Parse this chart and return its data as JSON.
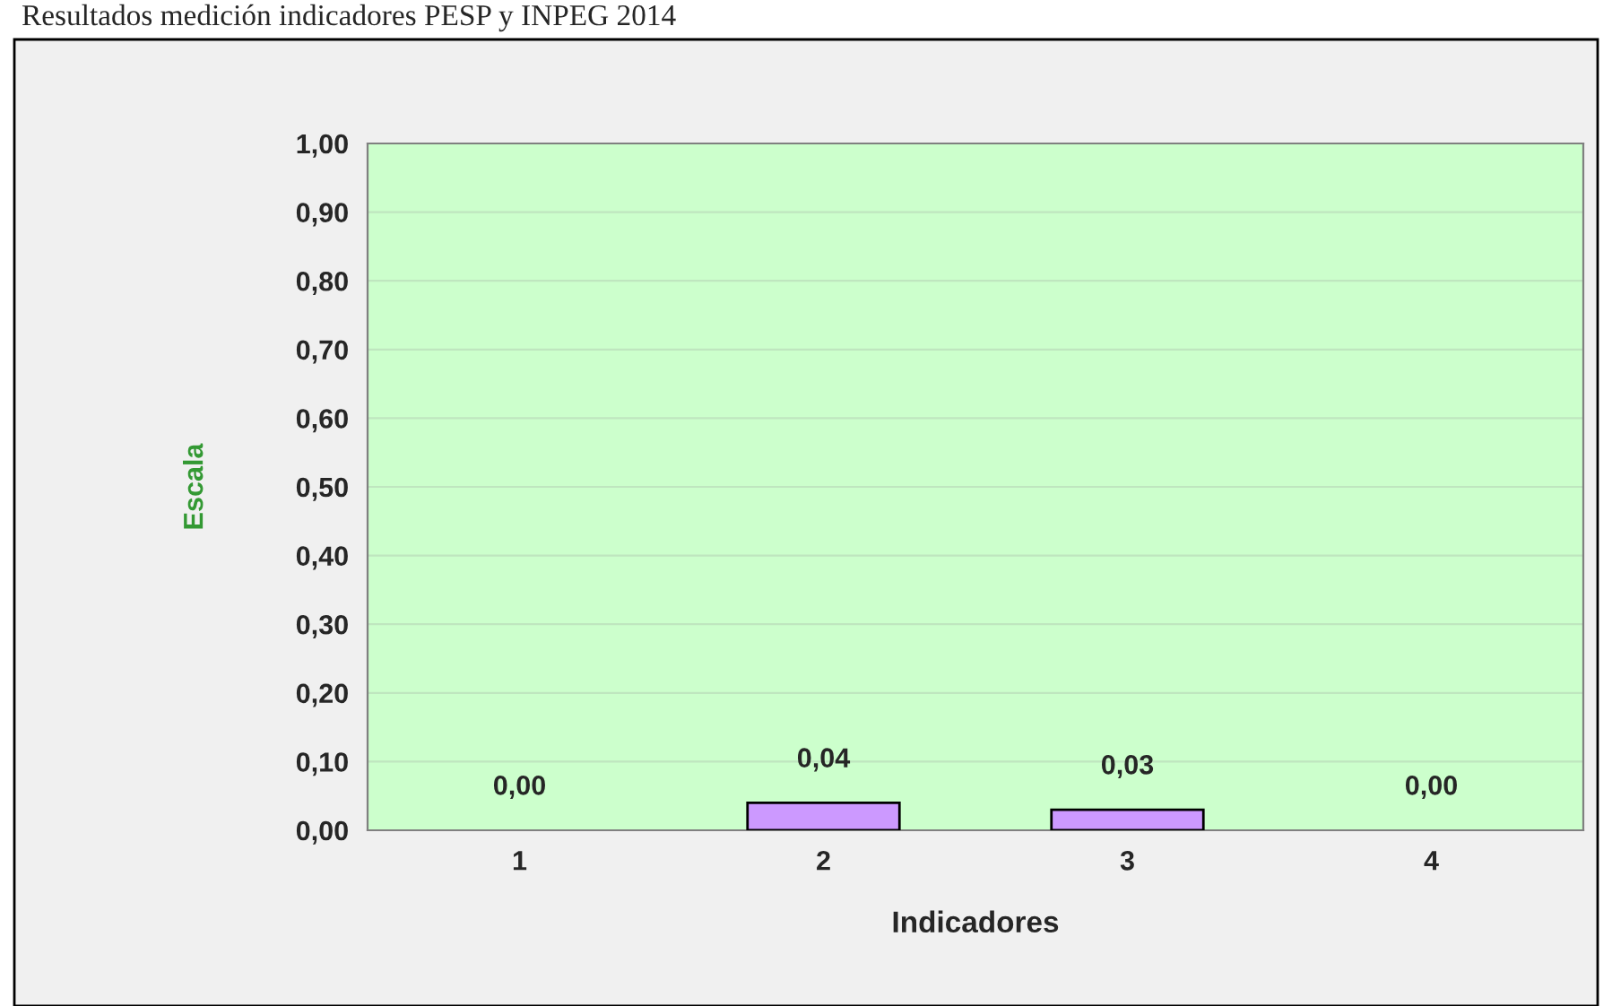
{
  "chart_data": {
    "type": "bar",
    "title": "Resultados medición indicadores PESP y INPEG 2014",
    "xlabel": "Indicadores",
    "ylabel": "Escala",
    "categories": [
      "1",
      "2",
      "3",
      "4"
    ],
    "values": [
      0,
      0.04,
      0.03,
      0
    ],
    "color": "#cc99ff",
    "value_labels": [
      "0,00",
      "0,04",
      "0,03",
      "0,00"
    ],
    "ylim": [
      0,
      1
    ],
    "yticks": [
      {
        "value": 0,
        "label": "0,00"
      },
      {
        "value": 0.1,
        "label": "0,10"
      },
      {
        "value": 0.2,
        "label": "0,20"
      },
      {
        "value": 0.3,
        "label": "0,30"
      },
      {
        "value": 0.4,
        "label": "0,40"
      },
      {
        "value": 0.5,
        "label": "0,50"
      },
      {
        "value": 0.6,
        "label": "0,60"
      },
      {
        "value": 0.7,
        "label": "0,70"
      },
      {
        "value": 0.8,
        "label": "0,80"
      },
      {
        "value": 0.9,
        "label": "0,90"
      },
      {
        "value": 1,
        "label": "1,00"
      }
    ],
    "grid": "y",
    "legend": false
  }
}
